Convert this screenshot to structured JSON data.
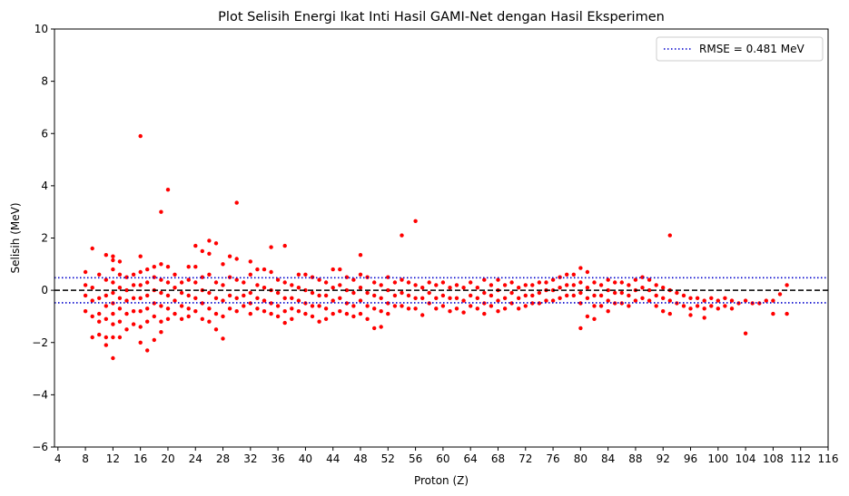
{
  "chart_data": {
    "type": "scatter",
    "title": "Plot Selisih Energi Ikat Inti Hasil GAMI-Net dengan Hasil Eksperimen",
    "xlabel": "Proton (Z)",
    "ylabel": "Selisih (MeV)",
    "xlim": [
      3.5,
      116
    ],
    "ylim": [
      -6,
      10
    ],
    "xticks": [
      4,
      8,
      12,
      16,
      20,
      24,
      28,
      32,
      36,
      40,
      44,
      48,
      52,
      56,
      60,
      64,
      68,
      72,
      76,
      80,
      84,
      88,
      92,
      96,
      100,
      104,
      108,
      112,
      116
    ],
    "yticks": [
      -6,
      -4,
      -2,
      0,
      2,
      4,
      6,
      8,
      10
    ],
    "ytick_labels": [
      "−6",
      "−4",
      "−2",
      "0",
      "2",
      "4",
      "6",
      "8",
      "10"
    ],
    "grid": false,
    "legend": {
      "placement": "top-right",
      "entries": [
        "RMSE = 0.481 MeV"
      ]
    },
    "reference_lines": {
      "zero": 0,
      "rmse": 0.481
    },
    "colors": {
      "points": "#ff0000",
      "zero_line": "#000000",
      "rmse_line": "#0000cc"
    },
    "point_note": "sampled",
    "points": [
      [
        8,
        0.7
      ],
      [
        8,
        0.2
      ],
      [
        8,
        -0.2
      ],
      [
        8,
        -0.8
      ],
      [
        9,
        1.6
      ],
      [
        9,
        0.1
      ],
      [
        9,
        -0.4
      ],
      [
        9,
        -1.0
      ],
      [
        9,
        -1.8
      ],
      [
        10,
        0.6
      ],
      [
        10,
        -0.3
      ],
      [
        10,
        -0.9
      ],
      [
        10,
        -1.2
      ],
      [
        10,
        -1.7
      ],
      [
        11,
        1.35
      ],
      [
        11,
        0.4
      ],
      [
        11,
        -0.2
      ],
      [
        11,
        -0.6
      ],
      [
        11,
        -1.1
      ],
      [
        11,
        -1.8
      ],
      [
        11,
        -2.1
      ],
      [
        12,
        1.3
      ],
      [
        12,
        1.15
      ],
      [
        12,
        0.8
      ],
      [
        12,
        0.3
      ],
      [
        12,
        -0.1
      ],
      [
        12,
        -0.5
      ],
      [
        12,
        -0.9
      ],
      [
        12,
        -1.3
      ],
      [
        12,
        -1.8
      ],
      [
        12,
        -2.6
      ],
      [
        13,
        1.1
      ],
      [
        13,
        0.6
      ],
      [
        13,
        0.1
      ],
      [
        13,
        -0.3
      ],
      [
        13,
        -0.7
      ],
      [
        13,
        -1.2
      ],
      [
        13,
        -1.8
      ],
      [
        14,
        0.5
      ],
      [
        14,
        0.0
      ],
      [
        14,
        -0.4
      ],
      [
        14,
        -0.9
      ],
      [
        14,
        -1.5
      ],
      [
        15,
        0.6
      ],
      [
        15,
        0.2
      ],
      [
        15,
        -0.3
      ],
      [
        15,
        -0.8
      ],
      [
        15,
        -1.3
      ],
      [
        16,
        5.9
      ],
      [
        16,
        1.3
      ],
      [
        16,
        0.7
      ],
      [
        16,
        0.2
      ],
      [
        16,
        -0.3
      ],
      [
        16,
        -0.8
      ],
      [
        16,
        -1.4
      ],
      [
        16,
        -2.0
      ],
      [
        17,
        0.8
      ],
      [
        17,
        0.3
      ],
      [
        17,
        -0.2
      ],
      [
        17,
        -0.7
      ],
      [
        17,
        -1.2
      ],
      [
        17,
        -2.3
      ],
      [
        18,
        0.9
      ],
      [
        18,
        0.5
      ],
      [
        18,
        0.0
      ],
      [
        18,
        -0.5
      ],
      [
        18,
        -1.0
      ],
      [
        18,
        -1.9
      ],
      [
        19,
        3.0
      ],
      [
        19,
        1.0
      ],
      [
        19,
        0.4
      ],
      [
        19,
        -0.1
      ],
      [
        19,
        -0.6
      ],
      [
        19,
        -1.2
      ],
      [
        19,
        -1.6
      ],
      [
        20,
        3.85
      ],
      [
        20,
        0.9
      ],
      [
        20,
        0.3
      ],
      [
        20,
        -0.2
      ],
      [
        20,
        -0.7
      ],
      [
        20,
        -1.1
      ],
      [
        21,
        0.6
      ],
      [
        21,
        0.1
      ],
      [
        21,
        -0.4
      ],
      [
        21,
        -0.9
      ],
      [
        22,
        0.3
      ],
      [
        22,
        -0.1
      ],
      [
        22,
        -0.6
      ],
      [
        22,
        -1.1
      ],
      [
        23,
        0.9
      ],
      [
        23,
        0.4
      ],
      [
        23,
        -0.2
      ],
      [
        23,
        -0.7
      ],
      [
        23,
        -1.0
      ],
      [
        24,
        1.7
      ],
      [
        24,
        0.9
      ],
      [
        24,
        0.3
      ],
      [
        24,
        -0.3
      ],
      [
        24,
        -0.8
      ],
      [
        25,
        1.5
      ],
      [
        25,
        0.5
      ],
      [
        25,
        0.0
      ],
      [
        25,
        -0.5
      ],
      [
        25,
        -1.1
      ],
      [
        26,
        1.9
      ],
      [
        26,
        1.4
      ],
      [
        26,
        0.6
      ],
      [
        26,
        -0.1
      ],
      [
        26,
        -0.7
      ],
      [
        26,
        -1.2
      ],
      [
        27,
        1.8
      ],
      [
        27,
        0.3
      ],
      [
        27,
        -0.3
      ],
      [
        27,
        -0.9
      ],
      [
        27,
        -1.5
      ],
      [
        28,
        1.0
      ],
      [
        28,
        0.2
      ],
      [
        28,
        -0.4
      ],
      [
        28,
        -1.0
      ],
      [
        28,
        -1.85
      ],
      [
        29,
        1.3
      ],
      [
        29,
        0.5
      ],
      [
        29,
        -0.2
      ],
      [
        29,
        -0.7
      ],
      [
        30,
        3.35
      ],
      [
        30,
        1.2
      ],
      [
        30,
        0.4
      ],
      [
        30,
        -0.3
      ],
      [
        30,
        -0.8
      ],
      [
        31,
        0.3
      ],
      [
        31,
        -0.2
      ],
      [
        31,
        -0.6
      ],
      [
        32,
        1.1
      ],
      [
        32,
        0.6
      ],
      [
        32,
        -0.1
      ],
      [
        32,
        -0.5
      ],
      [
        32,
        -0.9
      ],
      [
        33,
        0.8
      ],
      [
        33,
        0.2
      ],
      [
        33,
        -0.3
      ],
      [
        33,
        -0.7
      ],
      [
        34,
        0.8
      ],
      [
        34,
        0.1
      ],
      [
        34,
        -0.4
      ],
      [
        34,
        -0.8
      ],
      [
        35,
        1.65
      ],
      [
        35,
        0.7
      ],
      [
        35,
        0.0
      ],
      [
        35,
        -0.5
      ],
      [
        35,
        -0.9
      ],
      [
        36,
        0.4
      ],
      [
        36,
        -0.1
      ],
      [
        36,
        -0.6
      ],
      [
        36,
        -1.0
      ],
      [
        37,
        1.7
      ],
      [
        37,
        0.3
      ],
      [
        37,
        -0.3
      ],
      [
        37,
        -0.8
      ],
      [
        37,
        -1.25
      ],
      [
        38,
        0.2
      ],
      [
        38,
        -0.3
      ],
      [
        38,
        -0.7
      ],
      [
        38,
        -1.1
      ],
      [
        39,
        0.6
      ],
      [
        39,
        0.1
      ],
      [
        39,
        -0.4
      ],
      [
        39,
        -0.8
      ],
      [
        40,
        0.6
      ],
      [
        40,
        0.0
      ],
      [
        40,
        -0.5
      ],
      [
        40,
        -0.9
      ],
      [
        41,
        0.5
      ],
      [
        41,
        -0.1
      ],
      [
        41,
        -0.6
      ],
      [
        41,
        -1.0
      ],
      [
        42,
        0.4
      ],
      [
        42,
        -0.2
      ],
      [
        42,
        -0.6
      ],
      [
        42,
        -1.2
      ],
      [
        43,
        0.3
      ],
      [
        43,
        -0.2
      ],
      [
        43,
        -0.7
      ],
      [
        43,
        -1.1
      ],
      [
        44,
        0.8
      ],
      [
        44,
        0.1
      ],
      [
        44,
        -0.4
      ],
      [
        44,
        -0.9
      ],
      [
        45,
        0.8
      ],
      [
        45,
        0.2
      ],
      [
        45,
        -0.3
      ],
      [
        45,
        -0.8
      ],
      [
        46,
        0.5
      ],
      [
        46,
        0.0
      ],
      [
        46,
        -0.5
      ],
      [
        46,
        -0.9
      ],
      [
        47,
        0.4
      ],
      [
        47,
        -0.1
      ],
      [
        47,
        -0.6
      ],
      [
        47,
        -1.0
      ],
      [
        48,
        1.35
      ],
      [
        48,
        0.6
      ],
      [
        48,
        0.1
      ],
      [
        48,
        -0.4
      ],
      [
        48,
        -0.9
      ],
      [
        49,
        0.5
      ],
      [
        49,
        -0.1
      ],
      [
        49,
        -0.6
      ],
      [
        49,
        -1.1
      ],
      [
        50,
        0.3
      ],
      [
        50,
        -0.2
      ],
      [
        50,
        -0.7
      ],
      [
        50,
        -1.45
      ],
      [
        51,
        0.2
      ],
      [
        51,
        -0.3
      ],
      [
        51,
        -0.8
      ],
      [
        51,
        -1.4
      ],
      [
        52,
        0.5
      ],
      [
        52,
        0.0
      ],
      [
        52,
        -0.5
      ],
      [
        52,
        -0.9
      ],
      [
        53,
        0.3
      ],
      [
        53,
        -0.2
      ],
      [
        53,
        -0.6
      ],
      [
        54,
        2.1
      ],
      [
        54,
        0.4
      ],
      [
        54,
        -0.1
      ],
      [
        54,
        -0.6
      ],
      [
        55,
        0.3
      ],
      [
        55,
        -0.2
      ],
      [
        55,
        -0.7
      ],
      [
        56,
        2.65
      ],
      [
        56,
        0.2
      ],
      [
        56,
        -0.3
      ],
      [
        56,
        -0.7
      ],
      [
        57,
        0.1
      ],
      [
        57,
        -0.3
      ],
      [
        57,
        -0.95
      ],
      [
        58,
        0.3
      ],
      [
        58,
        -0.1
      ],
      [
        58,
        -0.5
      ],
      [
        59,
        0.2
      ],
      [
        59,
        -0.3
      ],
      [
        59,
        -0.7
      ],
      [
        60,
        0.3
      ],
      [
        60,
        -0.2
      ],
      [
        60,
        -0.6
      ],
      [
        61,
        0.1
      ],
      [
        61,
        -0.3
      ],
      [
        61,
        -0.8
      ],
      [
        62,
        0.2
      ],
      [
        62,
        -0.3
      ],
      [
        62,
        -0.7
      ],
      [
        63,
        0.1
      ],
      [
        63,
        -0.4
      ],
      [
        63,
        -0.85
      ],
      [
        64,
        0.3
      ],
      [
        64,
        -0.2
      ],
      [
        64,
        -0.6
      ],
      [
        65,
        0.1
      ],
      [
        65,
        -0.3
      ],
      [
        65,
        -0.7
      ],
      [
        66,
        0.4
      ],
      [
        66,
        -0.1
      ],
      [
        66,
        -0.5
      ],
      [
        66,
        -0.9
      ],
      [
        67,
        0.2
      ],
      [
        67,
        -0.2
      ],
      [
        67,
        -0.6
      ],
      [
        68,
        0.4
      ],
      [
        68,
        0.0
      ],
      [
        68,
        -0.4
      ],
      [
        68,
        -0.8
      ],
      [
        69,
        0.2
      ],
      [
        69,
        -0.3
      ],
      [
        69,
        -0.7
      ],
      [
        70,
        0.3
      ],
      [
        70,
        -0.1
      ],
      [
        70,
        -0.5
      ],
      [
        71,
        0.1
      ],
      [
        71,
        -0.3
      ],
      [
        71,
        -0.7
      ],
      [
        72,
        0.2
      ],
      [
        72,
        -0.2
      ],
      [
        72,
        -0.6
      ],
      [
        73,
        0.2
      ],
      [
        73,
        -0.2
      ],
      [
        73,
        -0.5
      ],
      [
        74,
        0.3
      ],
      [
        74,
        -0.1
      ],
      [
        74,
        -0.5
      ],
      [
        75,
        0.3
      ],
      [
        75,
        0.0
      ],
      [
        75,
        -0.4
      ],
      [
        76,
        0.4
      ],
      [
        76,
        0.0
      ],
      [
        76,
        -0.4
      ],
      [
        77,
        0.5
      ],
      [
        77,
        0.1
      ],
      [
        77,
        -0.3
      ],
      [
        78,
        0.6
      ],
      [
        78,
        0.2
      ],
      [
        78,
        -0.2
      ],
      [
        79,
        0.6
      ],
      [
        79,
        0.2
      ],
      [
        79,
        -0.2
      ],
      [
        80,
        0.85
      ],
      [
        80,
        0.3
      ],
      [
        80,
        -0.1
      ],
      [
        80,
        -0.5
      ],
      [
        80,
        -1.45
      ],
      [
        81,
        0.7
      ],
      [
        81,
        0.1
      ],
      [
        81,
        -0.3
      ],
      [
        81,
        -1.0
      ],
      [
        82,
        0.3
      ],
      [
        82,
        -0.2
      ],
      [
        82,
        -0.6
      ],
      [
        82,
        -1.1
      ],
      [
        83,
        0.2
      ],
      [
        83,
        -0.2
      ],
      [
        83,
        -0.6
      ],
      [
        84,
        0.4
      ],
      [
        84,
        0.0
      ],
      [
        84,
        -0.4
      ],
      [
        84,
        -0.8
      ],
      [
        85,
        0.3
      ],
      [
        85,
        -0.1
      ],
      [
        85,
        -0.5
      ],
      [
        86,
        0.3
      ],
      [
        86,
        -0.1
      ],
      [
        86,
        -0.5
      ],
      [
        87,
        0.2
      ],
      [
        87,
        -0.2
      ],
      [
        87,
        -0.6
      ],
      [
        88,
        0.4
      ],
      [
        88,
        0.0
      ],
      [
        88,
        -0.4
      ],
      [
        89,
        0.5
      ],
      [
        89,
        0.1
      ],
      [
        89,
        -0.3
      ],
      [
        90,
        0.4
      ],
      [
        90,
        0.0
      ],
      [
        90,
        -0.4
      ],
      [
        91,
        0.2
      ],
      [
        91,
        -0.2
      ],
      [
        91,
        -0.6
      ],
      [
        92,
        0.1
      ],
      [
        92,
        -0.3
      ],
      [
        92,
        -0.8
      ],
      [
        93,
        2.1
      ],
      [
        93,
        0.0
      ],
      [
        93,
        -0.4
      ],
      [
        93,
        -0.9
      ],
      [
        94,
        -0.1
      ],
      [
        94,
        -0.5
      ],
      [
        95,
        -0.2
      ],
      [
        95,
        -0.6
      ],
      [
        96,
        -0.3
      ],
      [
        96,
        -0.7
      ],
      [
        96,
        -0.95
      ],
      [
        97,
        -0.3
      ],
      [
        97,
        -0.6
      ],
      [
        98,
        -0.4
      ],
      [
        98,
        -0.7
      ],
      [
        98,
        -1.05
      ],
      [
        99,
        -0.3
      ],
      [
        99,
        -0.6
      ],
      [
        100,
        -0.4
      ],
      [
        100,
        -0.7
      ],
      [
        101,
        -0.3
      ],
      [
        101,
        -0.6
      ],
      [
        102,
        -0.4
      ],
      [
        102,
        -0.7
      ],
      [
        103,
        -0.5
      ],
      [
        104,
        -0.4
      ],
      [
        104,
        -1.65
      ],
      [
        105,
        -0.5
      ],
      [
        106,
        -0.5
      ],
      [
        107,
        -0.4
      ],
      [
        108,
        -0.4
      ],
      [
        108,
        -0.9
      ],
      [
        109,
        -0.15
      ],
      [
        110,
        0.2
      ],
      [
        110,
        -0.9
      ]
    ]
  }
}
